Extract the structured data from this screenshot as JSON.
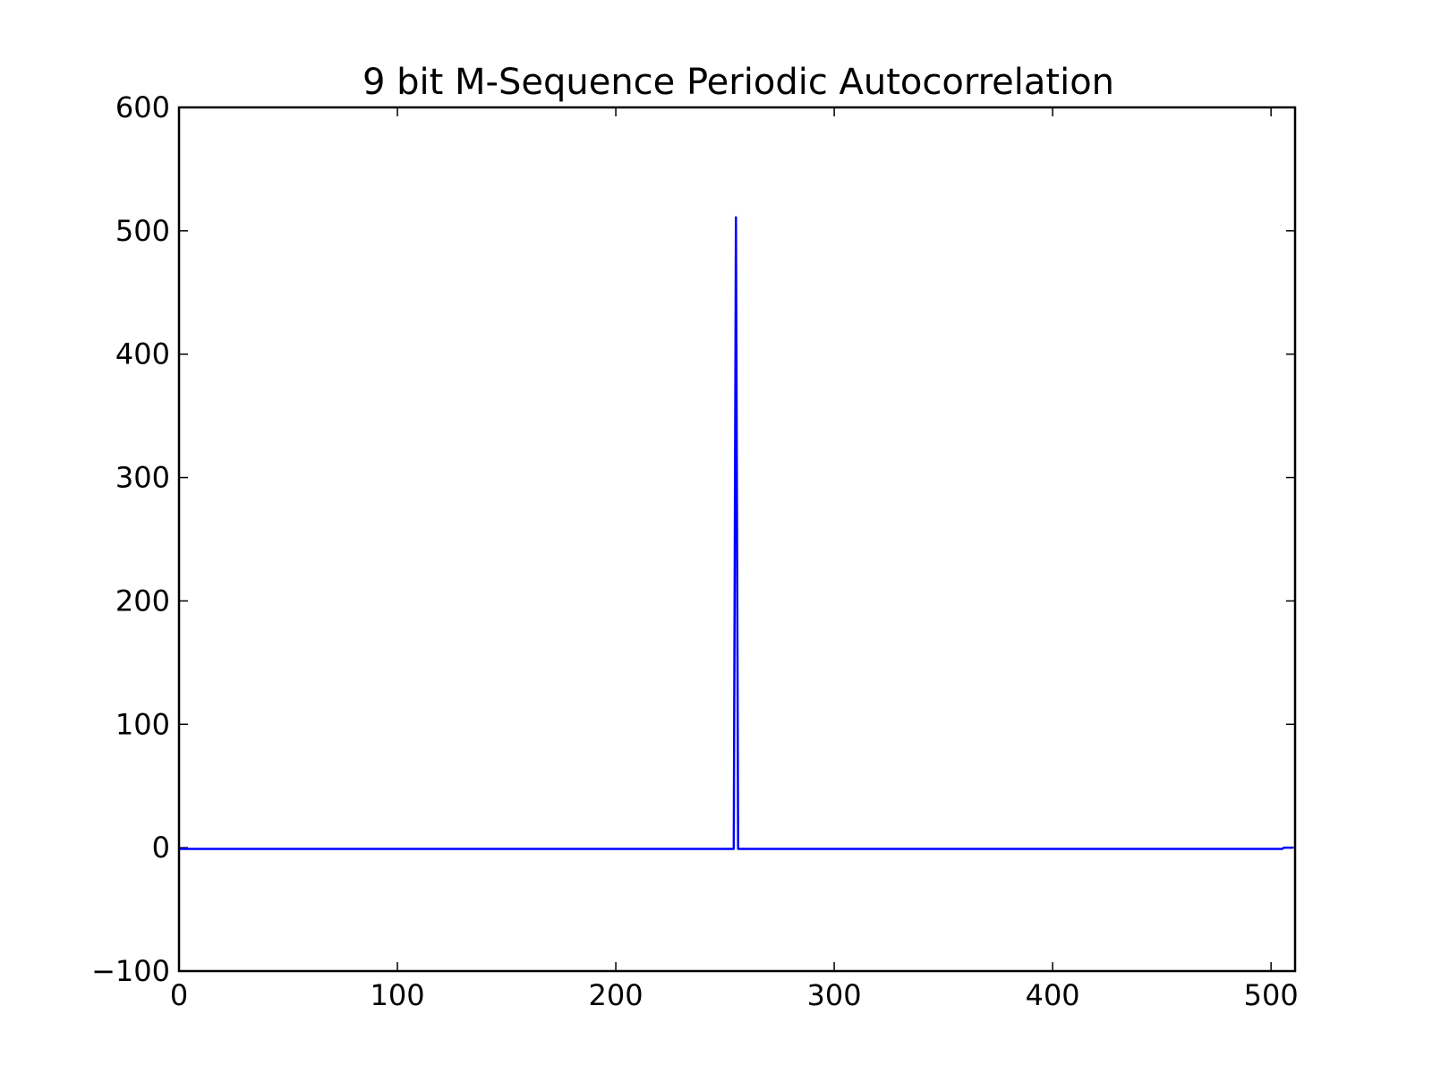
{
  "chart_data": {
    "type": "line",
    "title": "9 bit M-Sequence Periodic Autocorrelation",
    "xlabel": "",
    "ylabel": "",
    "xlim": [
      0,
      511
    ],
    "ylim": [
      -100,
      600
    ],
    "grid": false,
    "legend": "none",
    "x_ticks": [
      0,
      100,
      200,
      300,
      400,
      500
    ],
    "x_tick_labels": [
      "0",
      "100",
      "200",
      "300",
      "400",
      "500"
    ],
    "y_ticks": [
      -100,
      0,
      100,
      200,
      300,
      400,
      500,
      600
    ],
    "y_tick_labels": [
      "−100",
      "0",
      "100",
      "200",
      "300",
      "400",
      "500",
      "600"
    ],
    "series": [
      {
        "color": "#0000ff",
        "x": [
          0,
          254,
          255,
          256,
          505,
          506,
          510
        ],
        "y": [
          -1,
          -1,
          511,
          -1,
          -1,
          0,
          0
        ]
      }
    ]
  }
}
